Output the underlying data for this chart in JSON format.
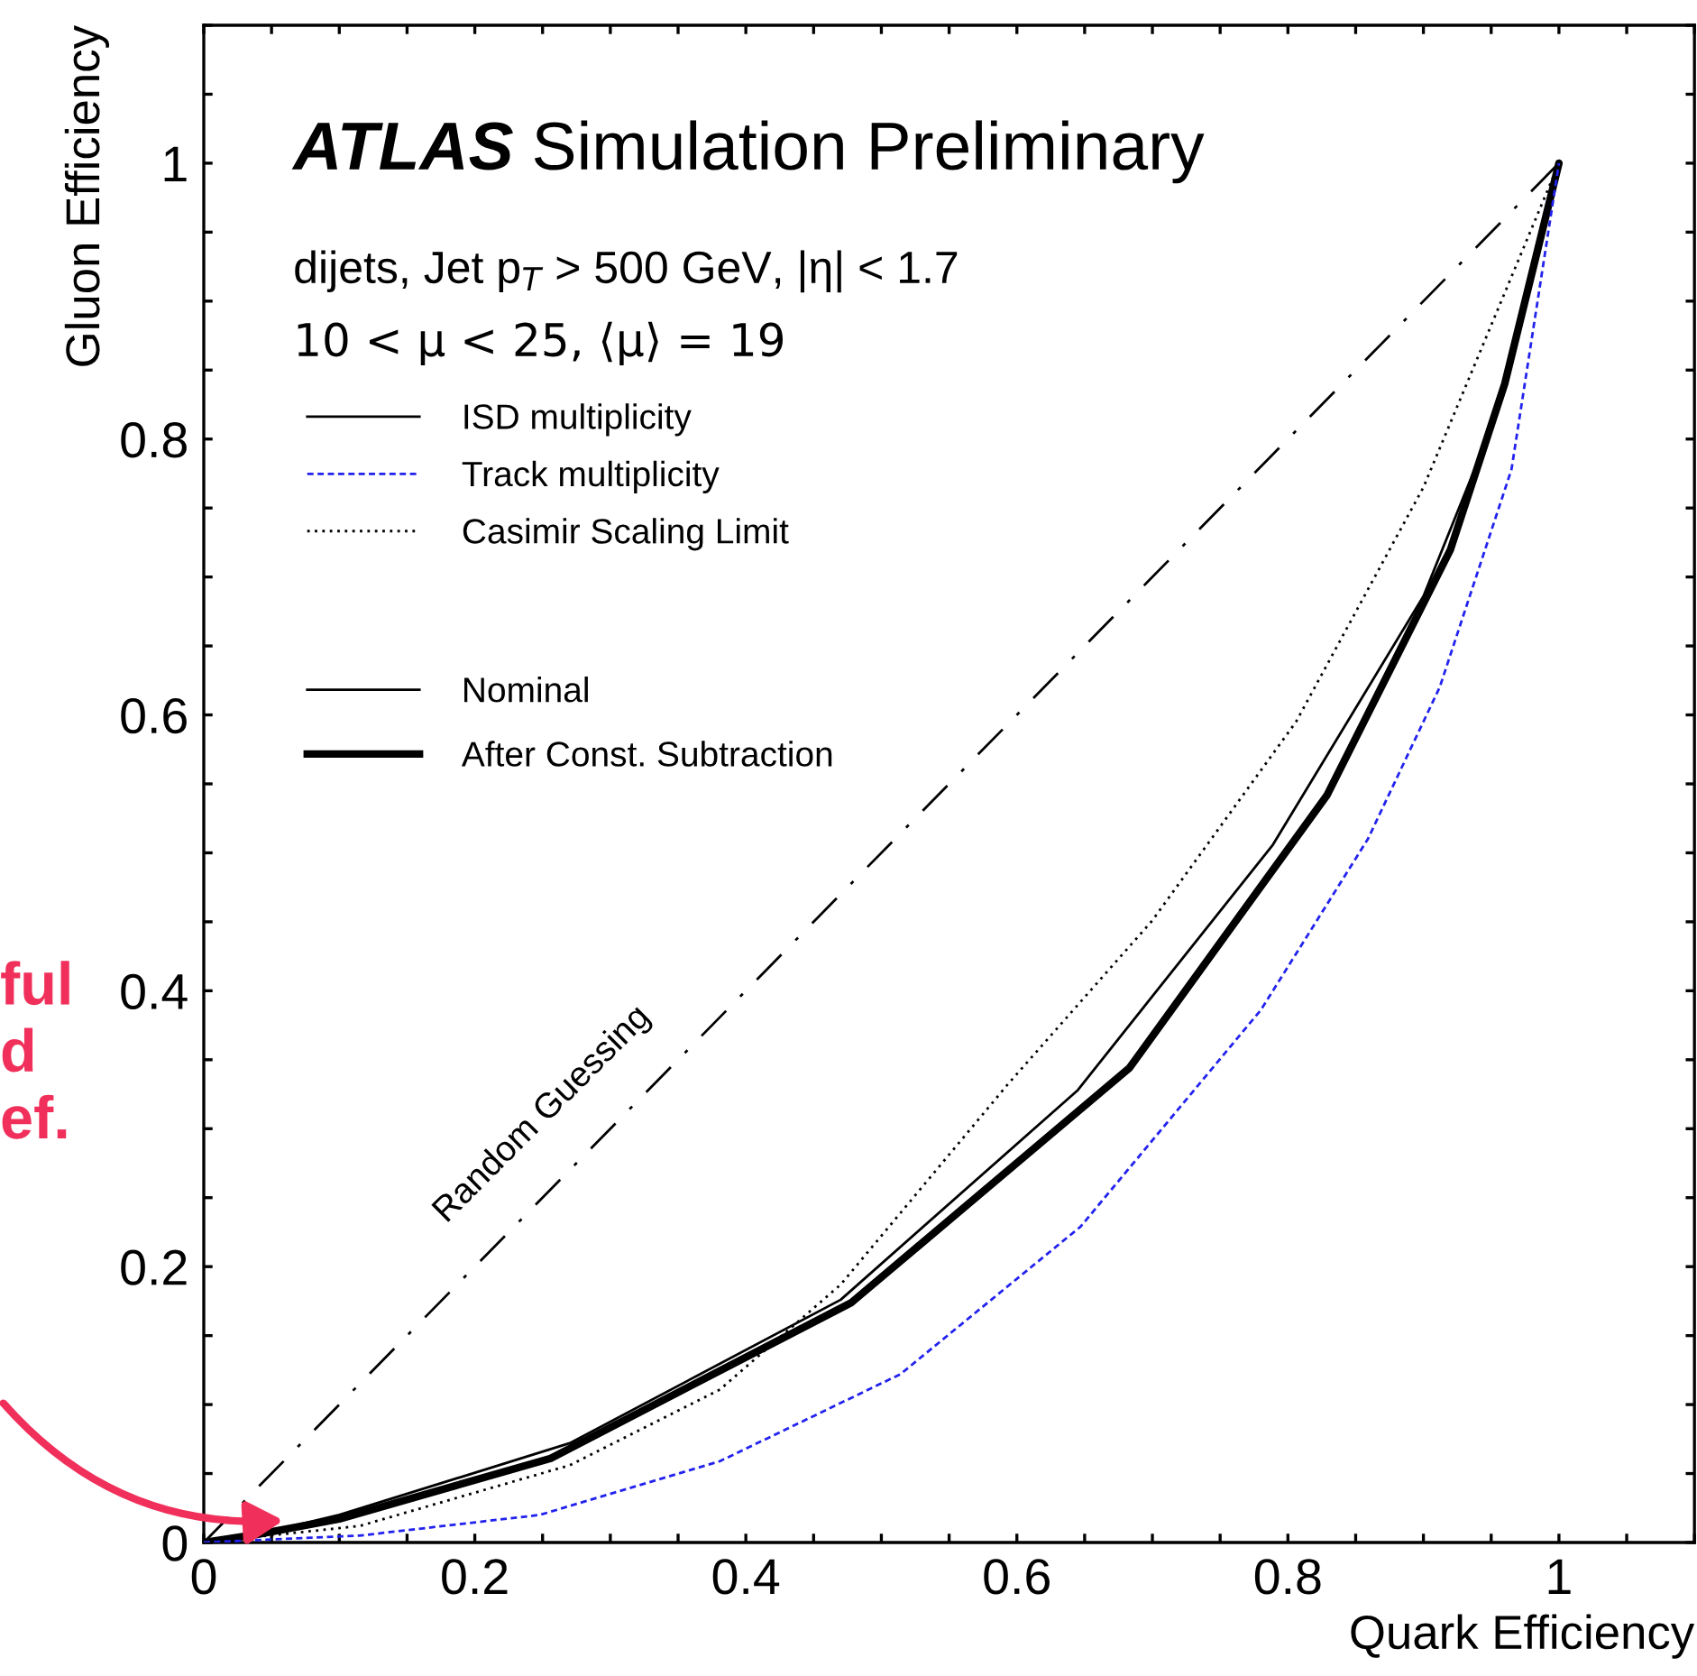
{
  "chart_data": {
    "type": "line",
    "xlabel": "Quark Efficiency",
    "ylabel": "Gluon Efficiency",
    "xlim": [
      0,
      1.1
    ],
    "ylim": [
      0,
      1.1
    ],
    "xticks": [
      0,
      {
        "value": 0.05,
        "label": null
      },
      {
        "value": 0.1,
        "label": null
      },
      {
        "value": 0.15,
        "label": null
      },
      0.2,
      {
        "value": 0.25,
        "label": null
      },
      {
        "value": 0.3,
        "label": null
      },
      {
        "value": 0.35,
        "label": null
      },
      0.4,
      {
        "value": 0.45,
        "label": null
      },
      {
        "value": 0.5,
        "label": null
      },
      {
        "value": 0.55,
        "label": null
      },
      0.6,
      {
        "value": 0.65,
        "label": null
      },
      {
        "value": 0.7,
        "label": null
      },
      {
        "value": 0.75,
        "label": null
      },
      0.8,
      {
        "value": 0.85,
        "label": null
      },
      {
        "value": 0.9,
        "label": null
      },
      {
        "value": 0.95,
        "label": null
      },
      1,
      {
        "value": 1.05,
        "label": null
      },
      {
        "value": 1.1,
        "label": null
      }
    ],
    "yticks": [
      0,
      {
        "value": 0.05,
        "label": null
      },
      {
        "value": 0.1,
        "label": null
      },
      {
        "value": 0.15,
        "label": null
      },
      0.2,
      {
        "value": 0.25,
        "label": null
      },
      {
        "value": 0.3,
        "label": null
      },
      {
        "value": 0.35,
        "label": null
      },
      0.4,
      {
        "value": 0.45,
        "label": null
      },
      {
        "value": 0.5,
        "label": null
      },
      {
        "value": 0.55,
        "label": null
      },
      0.6,
      {
        "value": 0.65,
        "label": null
      },
      {
        "value": 0.7,
        "label": null
      },
      {
        "value": 0.75,
        "label": null
      },
      0.8,
      {
        "value": 0.85,
        "label": null
      },
      {
        "value": 0.9,
        "label": null
      },
      {
        "value": 0.95,
        "label": null
      },
      1,
      {
        "value": 1.05,
        "label": null
      },
      {
        "value": 1.1,
        "label": null
      }
    ],
    "grid": false,
    "legend": "top left",
    "marker": "none",
    "series": [
      {
        "name": "ISD multiplicity",
        "color": "#000000",
        "line_style": "solid"
      },
      {
        "name": "Track multiplicity",
        "color": "#2222ee",
        "line_style": "dashed",
        "x": [
          0,
          0.115,
          0.248,
          0.381,
          0.514,
          0.647,
          0.78,
          0.859,
          0.912,
          0.965,
          1
        ],
        "values": [
          0,
          0.005,
          0.02,
          0.059,
          0.122,
          0.229,
          0.386,
          0.51,
          0.62,
          0.778,
          1
        ]
      },
      {
        "name": "Casimir Scaling Limit",
        "color": "#000000",
        "line_style": "dotted",
        "x": [
          0,
          0.115,
          0.27,
          0.381,
          0.47,
          0.594,
          0.7,
          0.806,
          0.9,
          1
        ],
        "values": [
          0,
          0.012,
          0.056,
          0.111,
          0.187,
          0.333,
          0.451,
          0.595,
          0.765,
          1
        ]
      },
      {
        "name": "Nominal",
        "color": "#000000",
        "line_style": "solid",
        "x": [
          0,
          0.04,
          0.1,
          0.27,
          0.47,
          0.645,
          0.789,
          0.9,
          0.955,
          1
        ],
        "values": [
          0,
          0.006,
          0.02,
          0.072,
          0.176,
          0.328,
          0.506,
          0.686,
          0.82,
          1
        ]
      },
      {
        "name": "After Const. Subtraction",
        "color": "#000000",
        "line_style": "solid",
        "x": [
          0,
          0.04,
          0.1,
          0.256,
          0.478,
          0.683,
          0.829,
          0.92,
          0.96,
          1
        ],
        "values": [
          0,
          0.006,
          0.017,
          0.061,
          0.174,
          0.344,
          0.542,
          0.72,
          0.84,
          1
        ]
      },
      {
        "type": "line",
        "color": "#000000",
        "line_style": "dashdot",
        "x": [
          0,
          1
        ],
        "values": [
          0,
          1
        ]
      }
    ],
    "annotations": [
      "ATLAS",
      "Simulation Preliminary",
      "dijets, Jet p$_{T}$ > 500 GeV, |η| < 1.7",
      "10 < μ < 25, ⟨μ⟩ = 19",
      "Random Guessing",
      "ful\nd\nef."
    ]
  }
}
